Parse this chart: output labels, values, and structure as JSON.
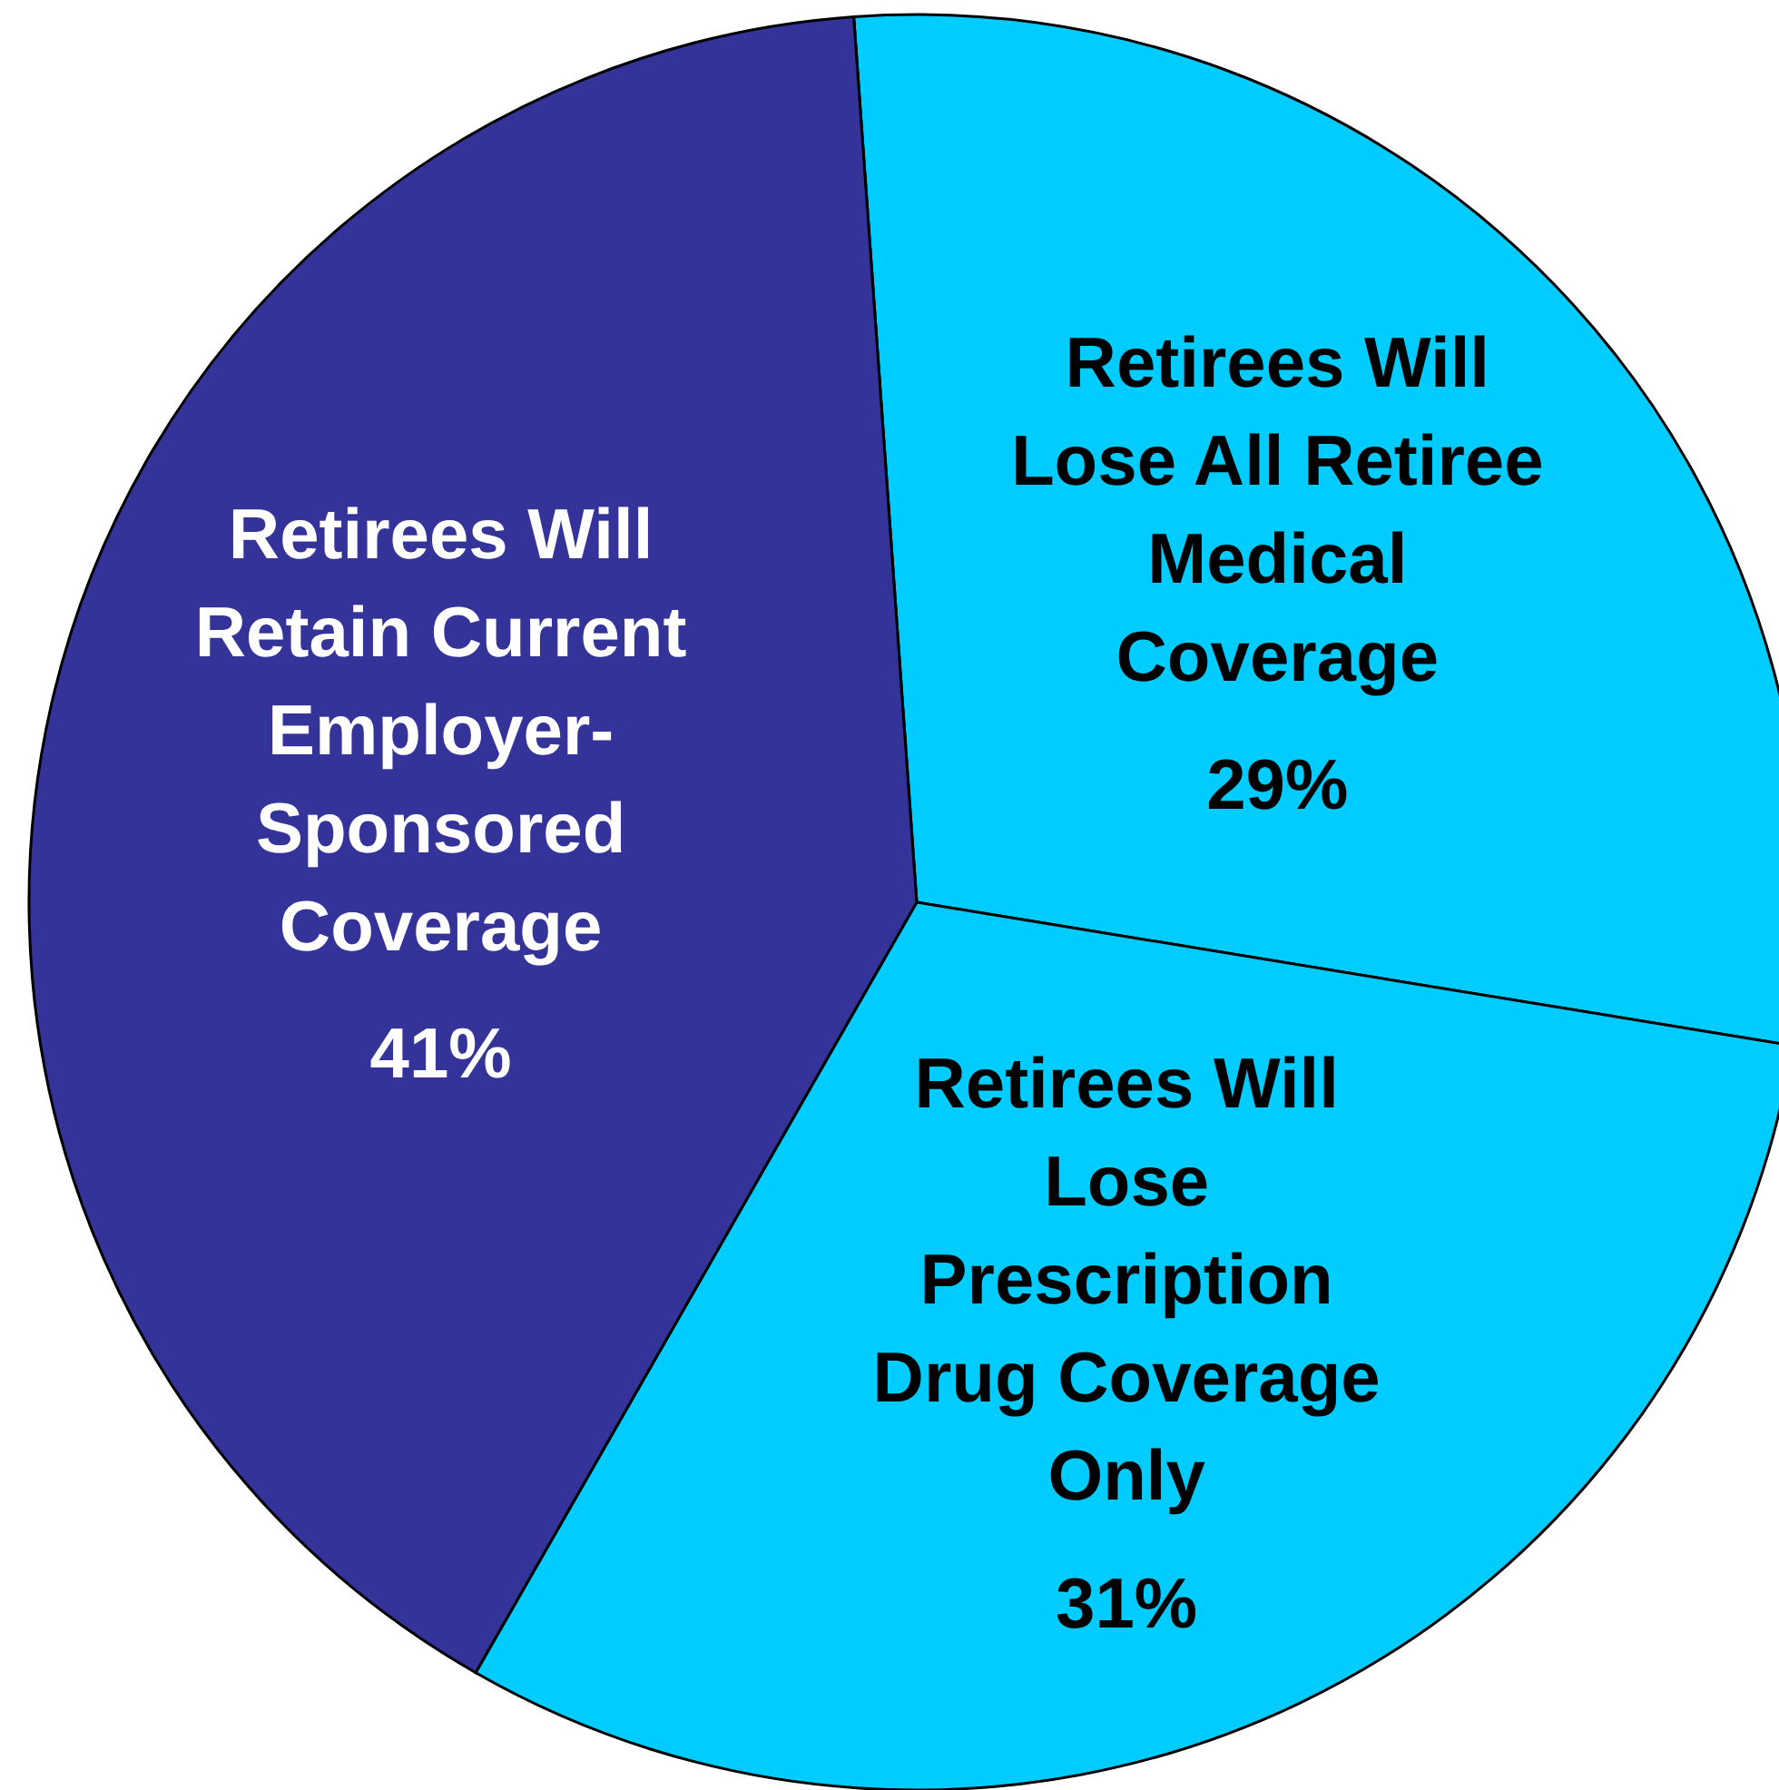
{
  "chart_data": {
    "type": "pie",
    "categories": [
      "Retirees Will\nLose All Retiree\nMedical\nCoverage",
      "Retirees Will\nLose\nPrescription\nDrug Coverage\nOnly",
      "Retirees Will\nRetain Current\nEmployer-\nSponsored\nCoverage"
    ],
    "values": [
      29,
      31,
      41
    ],
    "colors": [
      "#00ccff",
      "#00ccff",
      "#333399"
    ],
    "value_labels": [
      "29%",
      "31%",
      "41%"
    ]
  }
}
